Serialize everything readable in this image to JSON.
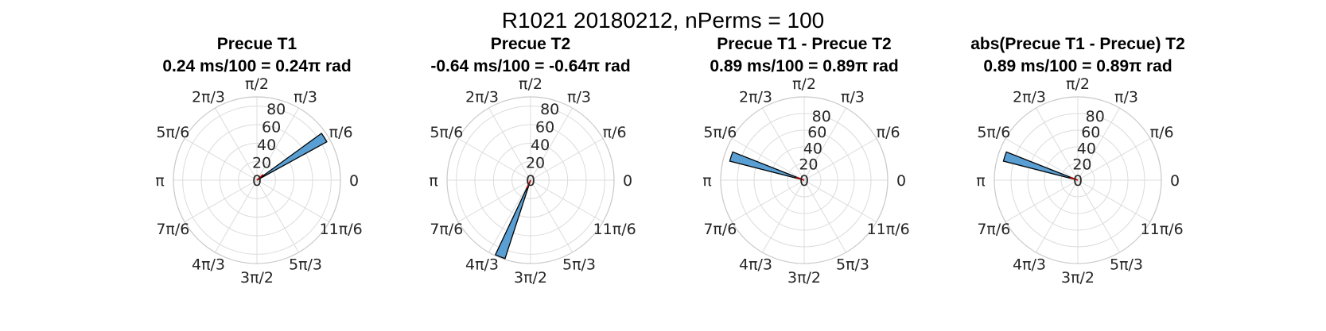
{
  "figure": {
    "title": "R1021 20180212, nPerms = 100"
  },
  "colors": {
    "bar": "#5a9fd4",
    "mean_line": "#cc0000"
  },
  "chart_data": [
    {
      "type": "polar-histogram",
      "title": "Precue T1",
      "subtitle": "0.24 ms/100 = 0.24π rad",
      "rlim": [
        0,
        90
      ],
      "r_ticks": [
        0,
        20,
        40,
        60,
        80
      ],
      "r_tick_labels": [
        "0",
        "20",
        "40",
        "60",
        "80"
      ],
      "theta_tick_labels": [
        "0",
        "π/6",
        "π/3",
        "π/2",
        "2π/3",
        "5π/6",
        "π",
        "7π/6",
        "4π/3",
        "3π/2",
        "5π/3",
        "11π/6"
      ],
      "bins": [
        {
          "theta_start_pi": 0.16,
          "theta_end_pi": 0.2,
          "count": 86
        }
      ],
      "mean_angle_pi": 0.24
    },
    {
      "type": "polar-histogram",
      "title": "Precue T2",
      "subtitle": "-0.64 ms/100 = -0.64π rad",
      "rlim": [
        0,
        90
      ],
      "r_ticks": [
        0,
        20,
        40,
        60,
        80
      ],
      "r_tick_labels": [
        "0",
        "20",
        "40",
        "60",
        "80"
      ],
      "theta_tick_labels": [
        "0",
        "π/6",
        "π/3",
        "π/2",
        "2π/3",
        "5π/6",
        "π",
        "7π/6",
        "4π/3",
        "3π/2",
        "5π/3",
        "11π/6"
      ],
      "bins": [
        {
          "theta_start_pi": 1.36,
          "theta_end_pi": 1.4,
          "count": 89
        }
      ],
      "mean_angle_pi": -0.64
    },
    {
      "type": "polar-histogram",
      "title": "Precue T1 - Precue T2",
      "subtitle": "0.89 ms/100 = 0.89π rad",
      "rlim": [
        0,
        100
      ],
      "r_ticks": [
        0,
        20,
        40,
        60,
        80
      ],
      "r_tick_labels": [
        "0",
        "20",
        "40",
        "60",
        "80"
      ],
      "theta_tick_labels": [
        "0",
        "π/6",
        "π/3",
        "π/2",
        "2π/3",
        "5π/6",
        "π",
        "7π/6",
        "4π/3",
        "3π/2",
        "5π/3",
        "11π/6"
      ],
      "bins": [
        {
          "theta_start_pi": 0.88,
          "theta_end_pi": 0.92,
          "count": 92
        }
      ],
      "mean_angle_pi": 0.89
    },
    {
      "type": "polar-histogram",
      "title": "abs(Precue T1 - Precue) T2",
      "subtitle": "0.89 ms/100 = 0.89π rad",
      "rlim": [
        0,
        100
      ],
      "r_ticks": [
        0,
        20,
        40,
        60,
        80
      ],
      "r_tick_labels": [
        "0",
        "20",
        "40",
        "60",
        "80"
      ],
      "theta_tick_labels": [
        "0",
        "π/6",
        "π/3",
        "π/2",
        "2π/3",
        "5π/6",
        "π",
        "7π/6",
        "4π/3",
        "3π/2",
        "5π/3",
        "11π/6"
      ],
      "bins": [
        {
          "theta_start_pi": 0.88,
          "theta_end_pi": 0.92,
          "count": 92
        }
      ],
      "mean_angle_pi": 0.89
    }
  ]
}
